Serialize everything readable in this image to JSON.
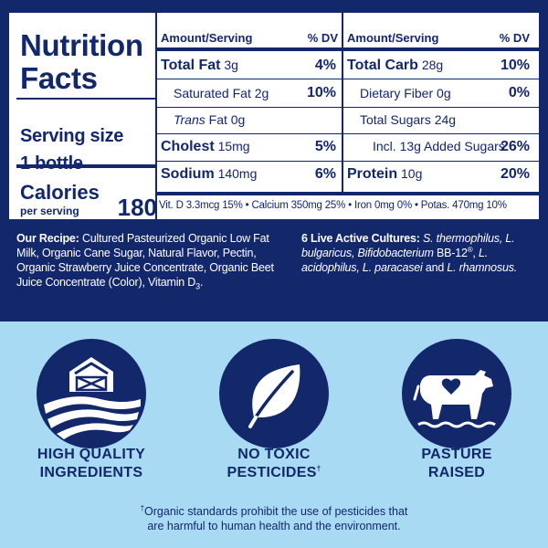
{
  "panel": {
    "title_line1": "Nutrition",
    "title_line2": "Facts",
    "serving_line1": "Serving size",
    "serving_line2": "1 bottle",
    "calories_label": "Calories",
    "calories_sub": "per serving",
    "calories_value": "180",
    "left_header": "Amount/Serving",
    "left_dv": "% DV",
    "right_header": "Amount/Serving",
    "right_dv": "% DV",
    "left_rows": [
      {
        "name": "Total Fat",
        "amount": "3g",
        "dv": "4%"
      },
      {
        "name": "Saturated Fat",
        "amount": "2g",
        "dv": "10%"
      },
      {
        "name_italic": "Trans",
        "name": "Fat",
        "amount": "0g",
        "dv": ""
      },
      {
        "name": "Cholest",
        "amount": "15mg",
        "dv": "5%"
      },
      {
        "name": "Sodium",
        "amount": "140mg",
        "dv": "6%"
      }
    ],
    "right_rows": [
      {
        "name": "Total Carb",
        "amount": "28g",
        "dv": "10%"
      },
      {
        "name": "Dietary Fiber",
        "amount": "0g",
        "dv": "0%"
      },
      {
        "name": "Total Sugars",
        "amount": "24g",
        "dv": ""
      },
      {
        "name": "Incl. 13g Added Sugars",
        "amount": "",
        "dv": "26%"
      },
      {
        "name": "Protein",
        "amount": "10g",
        "dv": "20%"
      }
    ],
    "vitamins": "Vit. D  3.3mcg 15% • Calcium 350mg 25% • Iron 0mg 0% • Potas. 470mg 10%"
  },
  "recipe": {
    "label": "Our Recipe:",
    "text": "Cultured Pasteurized Organic Low Fat Milk, Organic Cane Sugar, Natural Flavor, Pectin, Organic Strawberry Juice Concentrate, Organic Beet Juice Concentrate (Color), Vitamin D",
    "subscript": "3",
    "end": "."
  },
  "cultures": {
    "label": "6 Live Active Cultures:",
    "s1": "S. thermophilus,",
    "s2": "L. bulgaricus, Bifidobacterium",
    "s2_plain": "BB-12",
    "s2_mark": "®",
    "s3": "L. acidophilus, L. paracasei",
    "s3_plain": "and",
    "s4": "L. rhamnosus."
  },
  "badges": [
    {
      "icon": "farm-barn-icon",
      "line1": "HIGH QUALITY",
      "line2": "INGREDIENTS"
    },
    {
      "icon": "leaf-icon",
      "line1": "NO TOXIC",
      "line2": "PESTICIDES",
      "mark": "†"
    },
    {
      "icon": "cow-heart-icon",
      "line1": "PASTURE",
      "line2": "RAISED"
    }
  ],
  "footnote": {
    "mark": "†",
    "line1": "Organic standards prohibit the use of pesticides that",
    "line2": "are harmful to human health and the environment."
  },
  "colors": {
    "navy": "#13276b",
    "sky": "#a8daf3",
    "white": "#ffffff"
  }
}
